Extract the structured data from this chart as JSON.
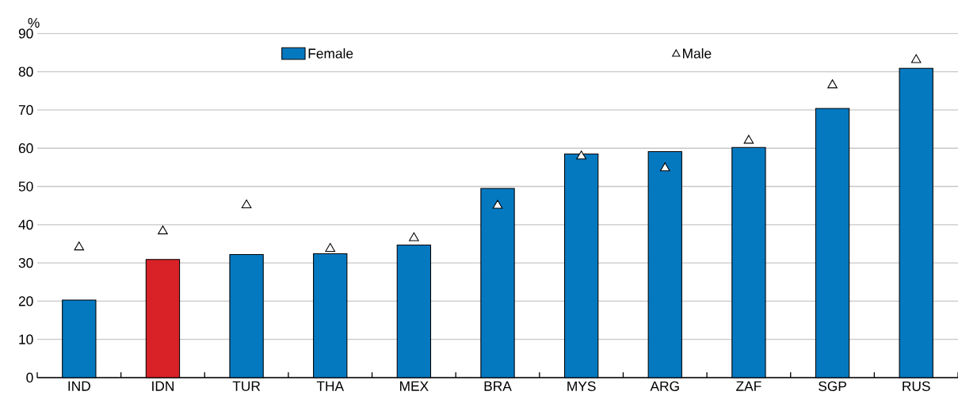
{
  "chart_data": {
    "type": "bar",
    "ylabel": "%",
    "categories": [
      "IND",
      "IDN",
      "TUR",
      "THA",
      "MEX",
      "BRA",
      "MYS",
      "ARG",
      "ZAF",
      "SGP",
      "RUS"
    ],
    "series": [
      {
        "name": "Female",
        "color": "#0579c0",
        "colors": [
          "#0579c0",
          "#d92128",
          "#0579c0",
          "#0579c0",
          "#0579c0",
          "#0579c0",
          "#0579c0",
          "#0579c0",
          "#0579c0",
          "#0579c0",
          "#0579c0"
        ],
        "values": [
          20.3,
          30.9,
          32.2,
          32.4,
          34.7,
          49.5,
          58.5,
          59.1,
          60.2,
          70.4,
          80.9
        ]
      },
      {
        "name": "Male",
        "type": "scatter",
        "marker": "triangle",
        "color": "#ffffff",
        "x": [
          "IND",
          "IDN",
          "TUR",
          "THA",
          "MEX",
          "BRA",
          "MYS",
          "ARG",
          "ZAF",
          "SGP",
          "RUS"
        ],
        "values": [
          34.1,
          38.3,
          45.1,
          33.7,
          36.5,
          45.0,
          57.9,
          54.8,
          62.0,
          76.5,
          83.1
        ]
      }
    ],
    "ylim": [
      0,
      90
    ],
    "yticks": [
      0,
      10,
      20,
      30,
      40,
      50,
      60,
      70,
      80,
      90
    ],
    "grid": "y",
    "legend": "top"
  }
}
